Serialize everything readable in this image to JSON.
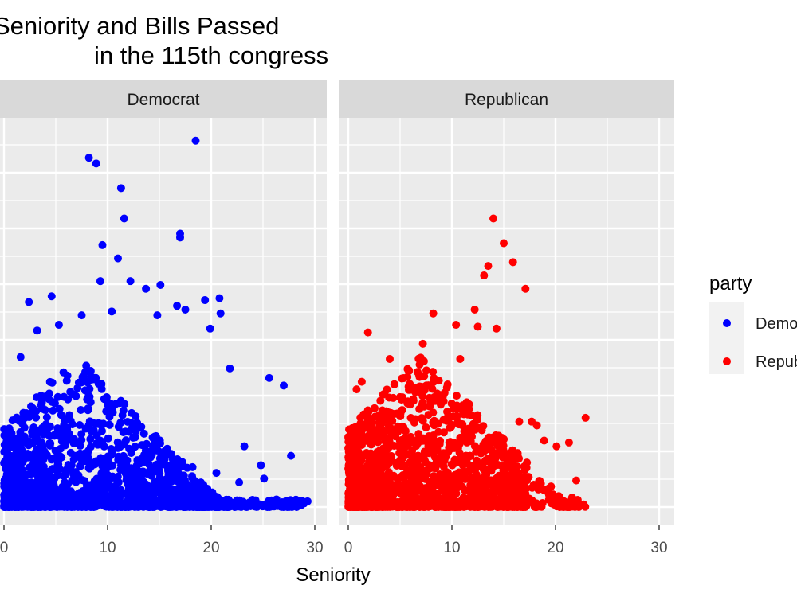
{
  "chart_data": {
    "type": "scatter",
    "title": "Seniority and Bills Passed\n                in the 115th congress",
    "xlabel": "Seniority",
    "ylabel": "",
    "xlim": [
      0,
      30
    ],
    "ylim": [
      0,
      20
    ],
    "x_ticks": [
      0,
      10,
      20,
      30
    ],
    "y_ticks": [],
    "grid": true,
    "legend": {
      "title": "party",
      "position": "right",
      "entries": [
        {
          "label": "Democrat",
          "color": "#0000ff"
        },
        {
          "label": "Republican",
          "color": "#ff0000"
        }
      ]
    },
    "facets": [
      {
        "label": "Democrat",
        "color": "#0000ff",
        "x_max": 29,
        "points": [
          [
            18.5,
            19.3
          ],
          [
            8.2,
            18.4
          ],
          [
            8.9,
            18.1
          ],
          [
            11.3,
            16.8
          ],
          [
            11.6,
            15.2
          ],
          [
            9.5,
            13.8
          ],
          [
            17,
            14.2
          ],
          [
            17,
            14.4
          ],
          [
            11,
            13.1
          ],
          [
            9.3,
            11.9
          ],
          [
            12.2,
            11.9
          ],
          [
            15.1,
            11.7
          ],
          [
            13.7,
            11.5
          ],
          [
            2.4,
            10.8
          ],
          [
            4.6,
            11.1
          ],
          [
            20.8,
            11
          ],
          [
            19.4,
            10.9
          ],
          [
            7.5,
            10.1
          ],
          [
            10.4,
            10.3
          ],
          [
            17.5,
            10.4
          ],
          [
            20.9,
            10.2
          ],
          [
            14.8,
            10.1
          ],
          [
            5.3,
            9.6
          ],
          [
            19.9,
            9.4
          ],
          [
            3.2,
            9.3
          ],
          [
            16.7,
            10.6
          ],
          [
            1.6,
            7.9
          ],
          [
            27,
            6.4
          ],
          [
            25.6,
            6.8
          ],
          [
            27.7,
            2.7
          ],
          [
            24.8,
            2.2
          ],
          [
            29.3,
            0.3
          ],
          [
            28.7,
            0.1
          ],
          [
            26.3,
            0.4
          ],
          [
            21.8,
            7.3
          ],
          [
            23.2,
            3.2
          ],
          [
            25.1,
            1.5
          ],
          [
            22.7,
            1.3
          ],
          [
            20.5,
            1.8
          ],
          [
            18.2,
            2.1
          ]
        ]
      },
      {
        "label": "Republican",
        "color": "#ff0000",
        "x_max": 23,
        "points": [
          [
            14,
            15.2
          ],
          [
            15,
            13.9
          ],
          [
            15.9,
            12.9
          ],
          [
            13.5,
            12.7
          ],
          [
            13.1,
            12.2
          ],
          [
            17.1,
            11.5
          ],
          [
            12.2,
            10.4
          ],
          [
            8.2,
            10.2
          ],
          [
            12.5,
            9.5
          ],
          [
            10.4,
            9.6
          ],
          [
            14.3,
            9.4
          ],
          [
            1.9,
            9.2
          ],
          [
            22.9,
            4.7
          ],
          [
            21.3,
            3.4
          ],
          [
            18.9,
            3.5
          ],
          [
            20.1,
            3.2
          ],
          [
            22,
            1.4
          ],
          [
            21.6,
            0.5
          ],
          [
            22.2,
            0.2
          ],
          [
            20,
            0.1
          ],
          [
            17.7,
            4.5
          ],
          [
            18.2,
            4.3
          ],
          [
            16.5,
            4.5
          ],
          [
            4,
            7.8
          ],
          [
            5.8,
            7.2
          ],
          [
            7.2,
            8.6
          ],
          [
            10.8,
            7.8
          ],
          [
            1.3,
            6.6
          ],
          [
            0.8,
            6.2
          ],
          [
            3.1,
            5.6
          ]
        ]
      }
    ]
  }
}
